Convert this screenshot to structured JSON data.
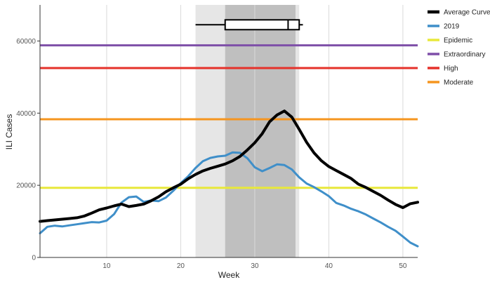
{
  "chart_data": {
    "type": "line",
    "xlabel": "Week",
    "ylabel": "ILI Cases",
    "xlim": [
      1,
      52
    ],
    "ylim": [
      0,
      70000
    ],
    "x_ticks": [
      10,
      20,
      30,
      40,
      50
    ],
    "y_ticks": [
      0,
      20000,
      40000,
      60000
    ],
    "y_tick_labels": [
      "0",
      "20000",
      "40000",
      "60000"
    ],
    "grid": "vertical",
    "legend_position": "right",
    "shaded_bands": [
      {
        "x_start": 22,
        "x_end": 36,
        "color": "#e6e6e6"
      },
      {
        "x_start": 26,
        "x_end": 35.5,
        "color": "#bfbfbf"
      }
    ],
    "boxplot": {
      "y": 64500,
      "whisker_low": 22,
      "q1": 26,
      "median": 34.5,
      "q3": 36,
      "whisker_high": 36.5,
      "color": "#000000"
    },
    "series": [
      {
        "name": "Average Curve",
        "color": "#000000",
        "x": [
          1,
          2,
          3,
          4,
          5,
          6,
          7,
          8,
          9,
          10,
          11,
          12,
          13,
          14,
          15,
          16,
          17,
          18,
          19,
          20,
          21,
          22,
          23,
          24,
          25,
          26,
          27,
          28,
          29,
          30,
          31,
          32,
          33,
          34,
          35,
          36,
          37,
          38,
          39,
          40,
          41,
          42,
          43,
          44,
          45,
          46,
          47,
          48,
          49,
          50,
          51,
          52
        ],
        "values": [
          10000,
          10200,
          10400,
          10600,
          10800,
          11000,
          11500,
          12300,
          13200,
          13700,
          14300,
          14800,
          14100,
          14400,
          14800,
          15700,
          16800,
          18200,
          19300,
          20300,
          21800,
          23000,
          24000,
          24700,
          25300,
          25900,
          26800,
          28000,
          29800,
          31800,
          34300,
          37600,
          39500,
          40600,
          38900,
          35500,
          31900,
          29000,
          26800,
          25200,
          24100,
          23000,
          21900,
          20300,
          19400,
          18300,
          17200,
          15900,
          14700,
          13800,
          14900,
          15300
        ]
      },
      {
        "name": "2019",
        "color": "#3f8fc9",
        "x": [
          1,
          2,
          3,
          4,
          5,
          6,
          7,
          8,
          9,
          10,
          11,
          12,
          13,
          14,
          15,
          16,
          17,
          18,
          19,
          20,
          21,
          22,
          23,
          24,
          25,
          26,
          27,
          28,
          29,
          30,
          31,
          32,
          33,
          34,
          35,
          36,
          37,
          38,
          39,
          40,
          41,
          42,
          43,
          44,
          45,
          46,
          47,
          48,
          49,
          50,
          51,
          52
        ],
        "values": [
          6700,
          8500,
          8800,
          8600,
          8900,
          9200,
          9500,
          9800,
          9700,
          10200,
          12000,
          15200,
          16700,
          16900,
          15400,
          15800,
          15600,
          16600,
          18500,
          20600,
          22500,
          24800,
          26700,
          27600,
          28000,
          28200,
          29100,
          29000,
          27500,
          25000,
          23900,
          24800,
          25800,
          25600,
          24400,
          22200,
          20500,
          19500,
          18300,
          17000,
          15100,
          14400,
          13500,
          12800,
          11900,
          10800,
          9700,
          8500,
          7400,
          5800,
          4100,
          3100
        ]
      },
      {
        "name": "Epidemic",
        "color": "#e8e83a",
        "values": [
          19300
        ]
      },
      {
        "name": "Extraordinary",
        "color": "#7e4fa8",
        "values": [
          58800
        ]
      },
      {
        "name": "High",
        "color": "#e5312a",
        "values": [
          52500
        ]
      },
      {
        "name": "Moderate",
        "color": "#f5951f",
        "values": [
          38300
        ]
      }
    ]
  }
}
